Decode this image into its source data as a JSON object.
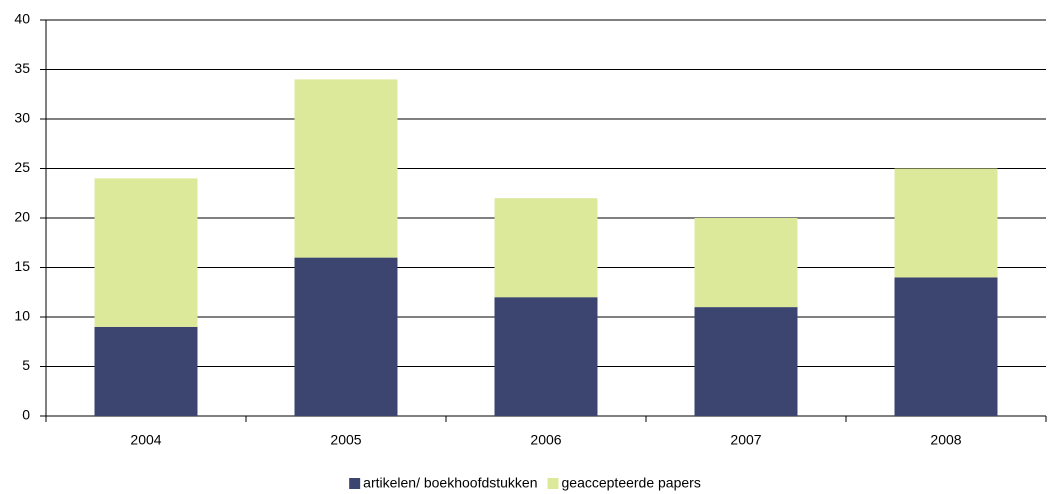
{
  "chart_data": {
    "type": "stacked_bar",
    "categories": [
      "2004",
      "2005",
      "2006",
      "2007",
      "2008"
    ],
    "series": [
      {
        "name": "artikelen/ boekhoofdstukken",
        "color": "#3b4570",
        "values": [
          9,
          16,
          12,
          11,
          14
        ]
      },
      {
        "name": "geaccepteerde papers",
        "color": "#dce89a",
        "values": [
          15,
          18,
          10,
          9,
          11
        ]
      }
    ],
    "ylim": [
      0,
      40
    ],
    "yticks": [
      0,
      5,
      10,
      15,
      20,
      25,
      30,
      35,
      40
    ],
    "grid": true,
    "legend": "bottom"
  }
}
